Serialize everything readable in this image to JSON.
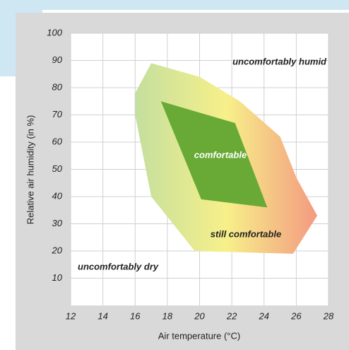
{
  "chart_data": {
    "type": "polygon",
    "xlabel": "Air temperature (°C)",
    "ylabel": "Relative air humidity (in %)",
    "xlim": [
      12,
      28
    ],
    "xticks": [
      12,
      14,
      16,
      18,
      20,
      22,
      24,
      26,
      28
    ],
    "ylim": [
      0,
      100
    ],
    "yticks": [
      10,
      20,
      30,
      40,
      50,
      60,
      70,
      80,
      90,
      100
    ],
    "grid": true,
    "regions": [
      {
        "colors": [
          "#c4df9e",
          "#f7f08a",
          "#f39a80"
        ],
        "x": [
          17,
          20,
          22.5,
          25,
          26,
          27.3,
          25.8,
          19.7,
          17,
          16,
          16
        ],
        "y": [
          89,
          84,
          75,
          62,
          47,
          33,
          19,
          20,
          40,
          70,
          78
        ]
      },
      {
        "colors": [
          "#69aa36"
        ],
        "x": [
          17.6,
          22.2,
          24.2,
          20.1
        ],
        "y": [
          75,
          67,
          36,
          39
        ]
      }
    ],
    "annotations": [
      "uncomfortably humid",
      "comfortable",
      "still comfortable",
      "uncomfortably dry"
    ]
  }
}
